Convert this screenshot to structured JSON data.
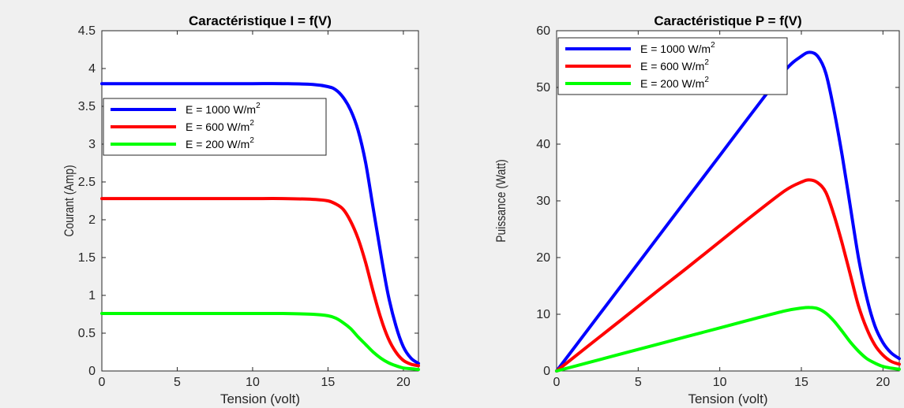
{
  "chart_data": [
    {
      "type": "line",
      "title": "Caractéristique I = f(V)",
      "xlabel": "Tension (volt)",
      "ylabel": "Courant (Amp)",
      "xlim": [
        0,
        21
      ],
      "ylim": [
        0,
        4.5
      ],
      "xticks": [
        0,
        5,
        10,
        15,
        20
      ],
      "yticks": [
        0,
        0.5,
        1,
        1.5,
        2,
        2.5,
        3,
        3.5,
        4,
        4.5
      ],
      "x": [
        0,
        2,
        4,
        6,
        8,
        10,
        12,
        14,
        15,
        15.5,
        16,
        16.5,
        17,
        17.5,
        18,
        18.5,
        19,
        19.5,
        20,
        20.5,
        21
      ],
      "legend_position": "middle-left",
      "grid": false,
      "series": [
        {
          "name": "E = 1000 W/m",
          "name_sup": "2",
          "color": "#0000ff",
          "values": [
            3.8,
            3.8,
            3.8,
            3.8,
            3.8,
            3.8,
            3.8,
            3.79,
            3.76,
            3.72,
            3.62,
            3.45,
            3.18,
            2.75,
            2.15,
            1.55,
            1.0,
            0.6,
            0.32,
            0.17,
            0.1
          ]
        },
        {
          "name": "E = 600 W/m",
          "name_sup": "2",
          "color": "#ff0000",
          "values": [
            2.28,
            2.28,
            2.28,
            2.28,
            2.28,
            2.28,
            2.28,
            2.27,
            2.25,
            2.21,
            2.14,
            1.98,
            1.75,
            1.43,
            1.05,
            0.7,
            0.43,
            0.25,
            0.14,
            0.09,
            0.07
          ]
        },
        {
          "name": "E = 200 W/m",
          "name_sup": "2",
          "color": "#00ff00",
          "values": [
            0.76,
            0.76,
            0.76,
            0.76,
            0.76,
            0.76,
            0.76,
            0.75,
            0.73,
            0.7,
            0.64,
            0.56,
            0.45,
            0.35,
            0.25,
            0.17,
            0.11,
            0.07,
            0.04,
            0.03,
            0.02
          ]
        }
      ]
    },
    {
      "type": "line",
      "title": "Caractéristique P = f(V)",
      "xlabel": "Tension (volt)",
      "ylabel": "Puissance (Watt)",
      "xlim": [
        0,
        21
      ],
      "ylim": [
        0,
        60
      ],
      "xticks": [
        0,
        5,
        10,
        15,
        20
      ],
      "yticks": [
        0,
        10,
        20,
        30,
        40,
        50,
        60
      ],
      "x": [
        0,
        2,
        4,
        6,
        8,
        10,
        12,
        14,
        15,
        15.5,
        16,
        16.5,
        17,
        17.5,
        18,
        18.5,
        19,
        19.5,
        20,
        20.5,
        21
      ],
      "legend_position": "top-left",
      "grid": false,
      "series": [
        {
          "name": "E = 1000 W/m",
          "name_sup": "2",
          "color": "#0000ff",
          "values": [
            0,
            7.6,
            15.2,
            22.8,
            30.4,
            38.0,
            45.6,
            53.0,
            55.5,
            56.2,
            55.5,
            52.5,
            46.0,
            38.0,
            29.0,
            20.0,
            13.0,
            8.0,
            5.0,
            3.2,
            2.2
          ]
        },
        {
          "name": "E = 600 W/m",
          "name_sup": "2",
          "color": "#ff0000",
          "values": [
            0,
            4.56,
            9.1,
            13.7,
            18.2,
            22.8,
            27.4,
            31.8,
            33.3,
            33.7,
            33.2,
            31.5,
            27.5,
            22.5,
            17.0,
            11.5,
            7.5,
            4.6,
            2.8,
            1.7,
            1.2
          ]
        },
        {
          "name": "E = 200 W/m",
          "name_sup": "2",
          "color": "#00ff00",
          "values": [
            0,
            1.52,
            3.04,
            4.56,
            6.08,
            7.6,
            9.12,
            10.6,
            11.1,
            11.2,
            11.0,
            10.2,
            8.8,
            7.0,
            5.1,
            3.5,
            2.2,
            1.4,
            0.8,
            0.5,
            0.3
          ]
        }
      ]
    }
  ]
}
